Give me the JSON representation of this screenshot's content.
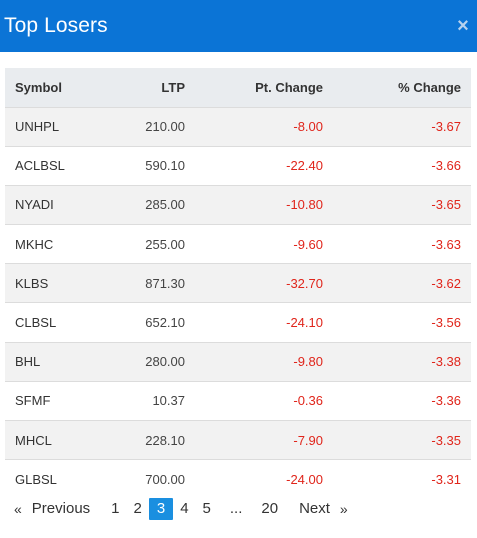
{
  "modal": {
    "title": "Top Losers",
    "close_glyph": "×"
  },
  "table": {
    "headers": {
      "symbol": "Symbol",
      "ltp": "LTP",
      "pt_change": "Pt. Change",
      "pct_change": "% Change"
    },
    "rows": [
      {
        "symbol": "UNHPL",
        "ltp": "210.00",
        "pt_change": "-8.00",
        "pct_change": "-3.67"
      },
      {
        "symbol": "ACLBSL",
        "ltp": "590.10",
        "pt_change": "-22.40",
        "pct_change": "-3.66"
      },
      {
        "symbol": "NYADI",
        "ltp": "285.00",
        "pt_change": "-10.80",
        "pct_change": "-3.65"
      },
      {
        "symbol": "MKHC",
        "ltp": "255.00",
        "pt_change": "-9.60",
        "pct_change": "-3.63"
      },
      {
        "symbol": "KLBS",
        "ltp": "871.30",
        "pt_change": "-32.70",
        "pct_change": "-3.62"
      },
      {
        "symbol": "CLBSL",
        "ltp": "652.10",
        "pt_change": "-24.10",
        "pct_change": "-3.56"
      },
      {
        "symbol": "BHL",
        "ltp": "280.00",
        "pt_change": "-9.80",
        "pct_change": "-3.38"
      },
      {
        "symbol": "SFMF",
        "ltp": "10.37",
        "pt_change": "-0.36",
        "pct_change": "-3.36"
      },
      {
        "symbol": "MHCL",
        "ltp": "228.10",
        "pt_change": "-7.90",
        "pct_change": "-3.35"
      },
      {
        "symbol": "GLBSL",
        "ltp": "700.00",
        "pt_change": "-24.00",
        "pct_change": "-3.31"
      }
    ]
  },
  "pagination": {
    "first_arrow": "«",
    "previous": "Previous",
    "pages": [
      "1",
      "2",
      "3",
      "4",
      "5"
    ],
    "active_page": "3",
    "ellipsis": "...",
    "last_page": "20",
    "next": "Next",
    "last_arrow": "»"
  },
  "colors": {
    "header_bg": "#0b74d6",
    "negative": "#e0251b",
    "active_page": "#1a8fe0"
  }
}
